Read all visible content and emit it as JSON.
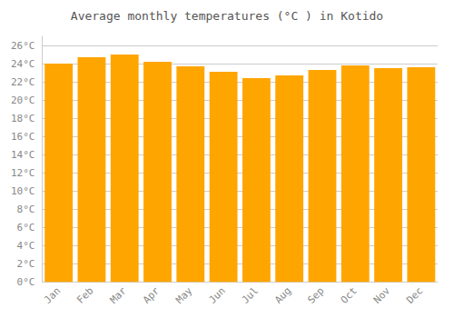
{
  "chart_data": {
    "type": "bar",
    "title": "Average monthly temperatures (°C ) in Kotido",
    "categories": [
      "Jan",
      "Feb",
      "Mar",
      "Apr",
      "May",
      "Jun",
      "Jul",
      "Aug",
      "Sep",
      "Oct",
      "Nov",
      "Dec"
    ],
    "values": [
      24.0,
      24.7,
      25.0,
      24.2,
      23.7,
      23.1,
      22.4,
      22.7,
      23.3,
      23.8,
      23.5,
      23.6
    ],
    "color": "#FFA500",
    "ylim": [
      0,
      27
    ],
    "yticks": [
      {
        "value": 0,
        "label": "0°C"
      },
      {
        "value": 2,
        "label": "2°C"
      },
      {
        "value": 4,
        "label": "4°C"
      },
      {
        "value": 6,
        "label": "6°C"
      },
      {
        "value": 8,
        "label": "8°C"
      },
      {
        "value": 10,
        "label": "10°C"
      },
      {
        "value": 12,
        "label": "12°C"
      },
      {
        "value": 14,
        "label": "14°C"
      },
      {
        "value": 16,
        "label": "16°C"
      },
      {
        "value": 18,
        "label": "18°C"
      },
      {
        "value": 20,
        "label": "20°C"
      },
      {
        "value": 22,
        "label": "22°C"
      },
      {
        "value": 24,
        "label": "24°C"
      },
      {
        "value": 26,
        "label": "26°C"
      }
    ],
    "grid": true
  }
}
